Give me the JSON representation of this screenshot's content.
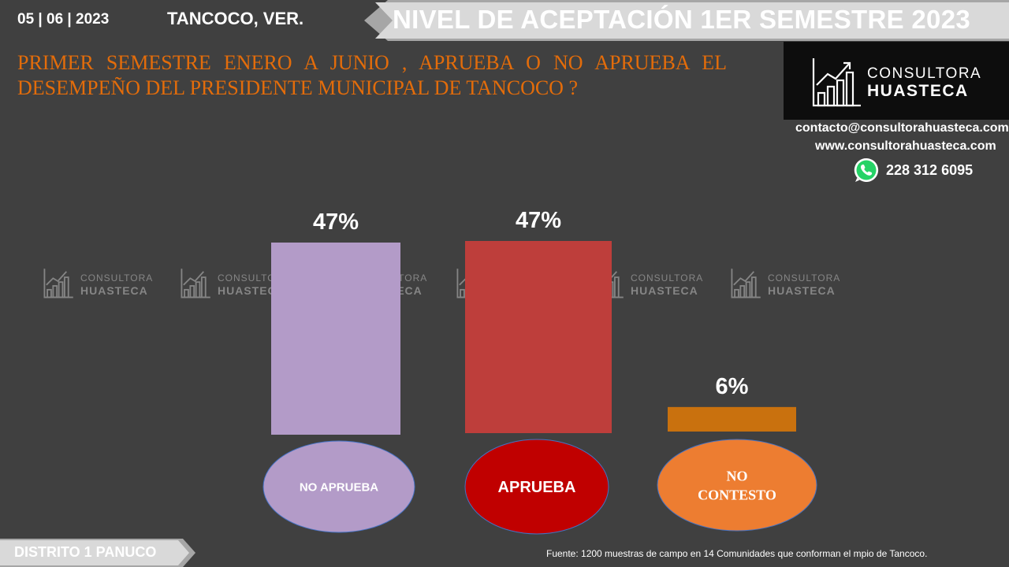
{
  "header": {
    "date": "05 | 06 | 2023",
    "location": "TANCOCO, VER.",
    "title": "NIVEL DE ACEPTACIÓN  1ER SEMESTRE 2023"
  },
  "question": "PRIMER SEMESTRE ENERO A JUNIO , APRUEBA O NO APRUEBA EL DESEMPEÑO DEL PRESIDENTE MUNICIPAL DE  TANCOCO ?",
  "logo": {
    "line1": "CONSULTORA",
    "line2": "HUASTECA"
  },
  "contact": {
    "email": "contacto@consultorahuasteca.com",
    "web": "www.consultorahuasteca.com",
    "phone": "228 312 6095"
  },
  "chart_data": {
    "type": "bar",
    "categories": [
      "NO APRUEBA",
      "APRUEBA",
      "NO CONTESTO"
    ],
    "values": [
      47,
      47,
      6
    ],
    "data_labels": [
      "47%",
      "47%",
      "6%"
    ],
    "colors": [
      "#b39bc8",
      "#be3e3b",
      "#c9710e"
    ],
    "badge_colors": [
      "#b39bc8",
      "#c00000",
      "#ed7d31"
    ],
    "grid": false,
    "legend": "none"
  },
  "footer": {
    "district": "DISTRITO 1 PANUCO",
    "source": "Fuente: 1200  muestras de campo en  14 Comunidades que conforman el mpio de  Tancoco."
  }
}
